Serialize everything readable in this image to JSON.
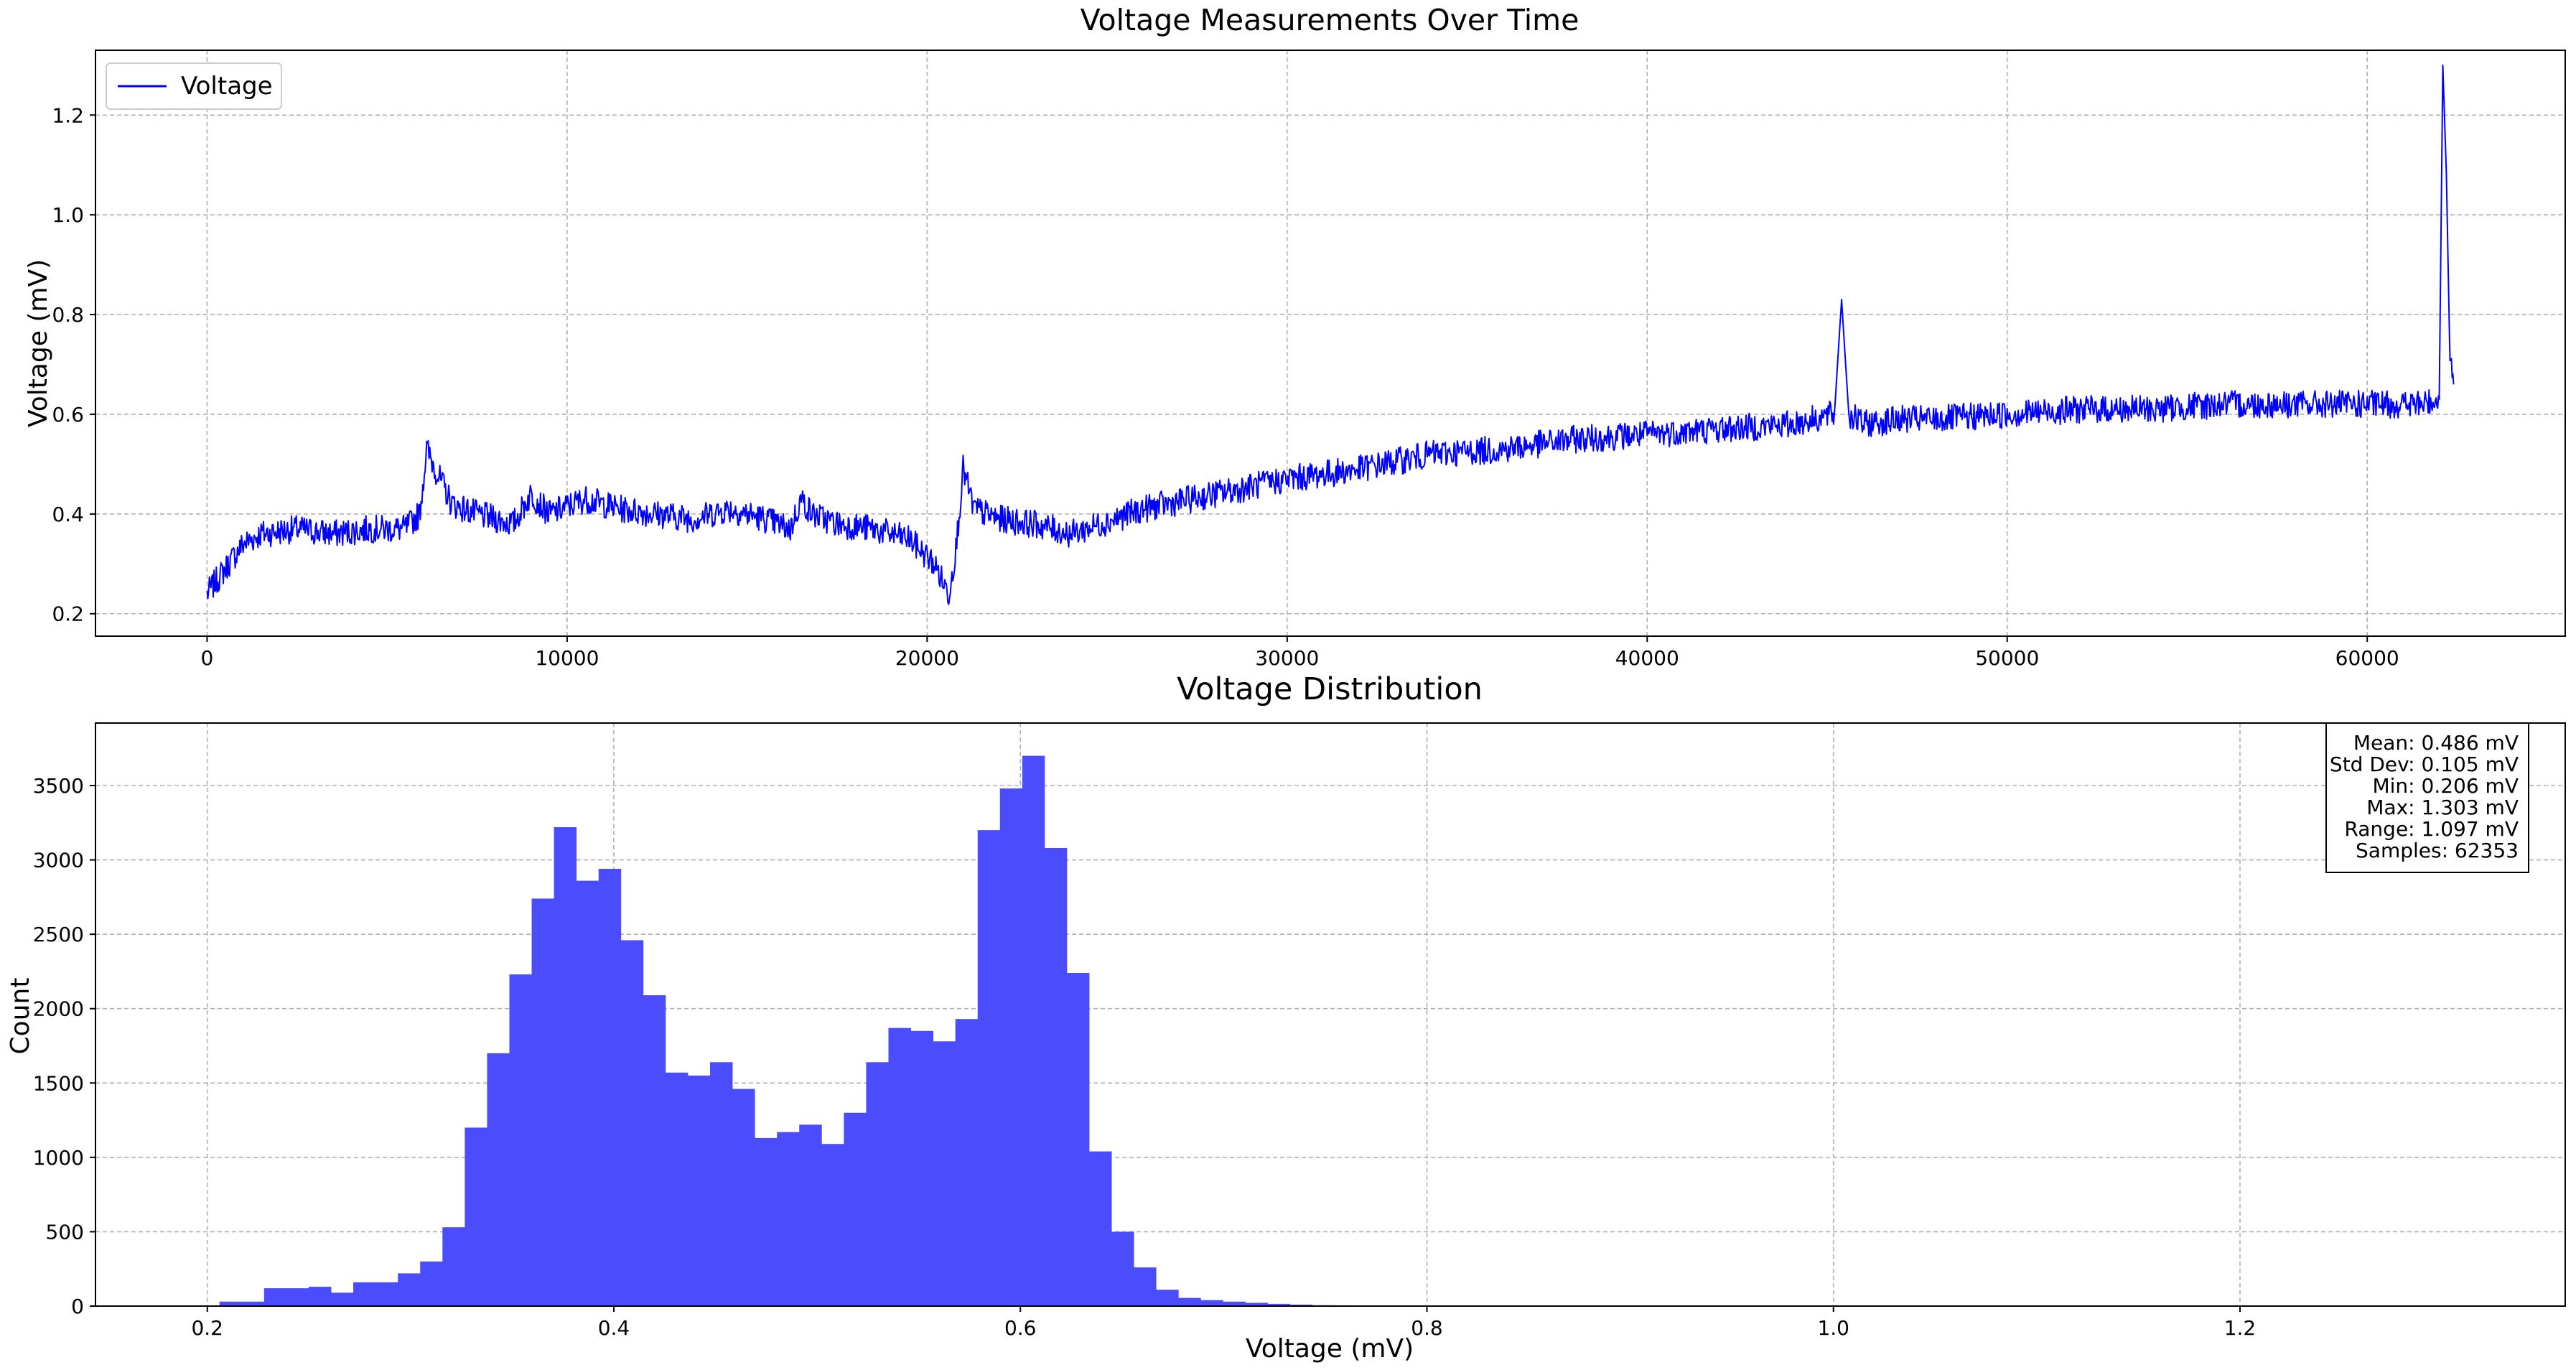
{
  "colors": {
    "line": "#0000ff",
    "bars": "#4c4cff",
    "grid": "#b0b0b0",
    "frame": "#000000"
  },
  "chart_data": [
    {
      "type": "line",
      "title": "Voltage Measurements Over Time",
      "xlabel": "",
      "ylabel": "Voltage (mV)",
      "xlim": [
        -3100,
        65500
      ],
      "ylim": [
        0.155,
        1.33
      ],
      "xticks": [
        0,
        10000,
        20000,
        30000,
        40000,
        50000,
        60000
      ],
      "xtick_labels": [
        "0",
        "10000",
        "20000",
        "30000",
        "40000",
        "50000",
        "60000"
      ],
      "yticks": [
        0.2,
        0.4,
        0.6,
        0.8,
        1.0,
        1.2
      ],
      "ytick_labels": [
        "0.2",
        "0.4",
        "0.6",
        "0.8",
        "1.0",
        "1.2"
      ],
      "grid": true,
      "legend": {
        "position": "top-left",
        "entries": [
          "Voltage"
        ]
      },
      "series": [
        {
          "name": "Voltage",
          "x": [
            0,
            300,
            600,
            1000,
            1500,
            2500,
            3500,
            4500,
            5500,
            5900,
            6100,
            6400,
            6800,
            7500,
            8500,
            9000,
            9500,
            10500,
            11500,
            12500,
            13500,
            14500,
            15500,
            16200,
            16500,
            16800,
            17500,
            18500,
            19500,
            20200,
            20600,
            20800,
            21000,
            21300,
            22000,
            23000,
            24000,
            26000,
            28000,
            30000,
            32000,
            34000,
            36000,
            38000,
            40000,
            42000,
            44000,
            45200,
            45400,
            45600,
            46000,
            47000,
            48000,
            50000,
            52000,
            54000,
            56000,
            58000,
            60000,
            61500,
            62000,
            62100,
            62200,
            62300,
            62400
          ],
          "y": [
            0.24,
            0.27,
            0.3,
            0.34,
            0.36,
            0.37,
            0.36,
            0.37,
            0.37,
            0.4,
            0.53,
            0.48,
            0.42,
            0.4,
            0.38,
            0.44,
            0.4,
            0.43,
            0.41,
            0.4,
            0.39,
            0.41,
            0.39,
            0.37,
            0.43,
            0.4,
            0.38,
            0.37,
            0.35,
            0.3,
            0.24,
            0.33,
            0.49,
            0.41,
            0.39,
            0.38,
            0.36,
            0.41,
            0.44,
            0.47,
            0.49,
            0.52,
            0.53,
            0.55,
            0.56,
            0.57,
            0.58,
            0.6,
            0.83,
            0.6,
            0.58,
            0.59,
            0.59,
            0.6,
            0.61,
            0.61,
            0.62,
            0.62,
            0.62,
            0.62,
            0.63,
            1.3,
            1.08,
            0.7,
            0.66
          ]
        }
      ]
    },
    {
      "type": "bar",
      "title": "Voltage Distribution",
      "xlabel": "Voltage (mV)",
      "ylabel": "Count",
      "xlim": [
        0.145,
        1.36
      ],
      "ylim": [
        0,
        3920
      ],
      "xticks": [
        0.2,
        0.4,
        0.6,
        0.8,
        1.0,
        1.2
      ],
      "xtick_labels": [
        "0.2",
        "0.4",
        "0.6",
        "0.8",
        "1.0",
        "1.2"
      ],
      "yticks": [
        0,
        500,
        1000,
        1500,
        2000,
        2500,
        3000,
        3500
      ],
      "ytick_labels": [
        "0",
        "500",
        "1000",
        "1500",
        "2000",
        "2500",
        "3000",
        "3500"
      ],
      "grid": true,
      "bins": {
        "start": 0.206,
        "width": 0.01097,
        "counts": [
          30,
          30,
          120,
          120,
          130,
          90,
          160,
          160,
          220,
          300,
          530,
          1200,
          1700,
          2230,
          2740,
          3220,
          2860,
          2940,
          2460,
          2090,
          1570,
          1550,
          1640,
          1460,
          1130,
          1170,
          1220,
          1090,
          1300,
          1640,
          1870,
          1850,
          1780,
          1930,
          3200,
          3480,
          3700,
          3080,
          2240,
          1040,
          500,
          260,
          110,
          55,
          40,
          30,
          22,
          15,
          10,
          6,
          5,
          4,
          4,
          3,
          3,
          3,
          3,
          2,
          2,
          2,
          2,
          2,
          2,
          2,
          1,
          1,
          1,
          1,
          1,
          1,
          1,
          1,
          1,
          1,
          1,
          1,
          1,
          1,
          1,
          1,
          1,
          1,
          1,
          1,
          1,
          1,
          1,
          1,
          1,
          1,
          1,
          1,
          1,
          1,
          1,
          1,
          1,
          1,
          1,
          1
        ]
      },
      "stats_box": {
        "position": "top-right",
        "lines": [
          "Mean: 0.486 mV",
          "Std Dev: 0.105 mV",
          "Min: 0.206 mV",
          "Max: 1.303 mV",
          "Range: 1.097 mV",
          "Samples: 62353"
        ]
      }
    }
  ]
}
